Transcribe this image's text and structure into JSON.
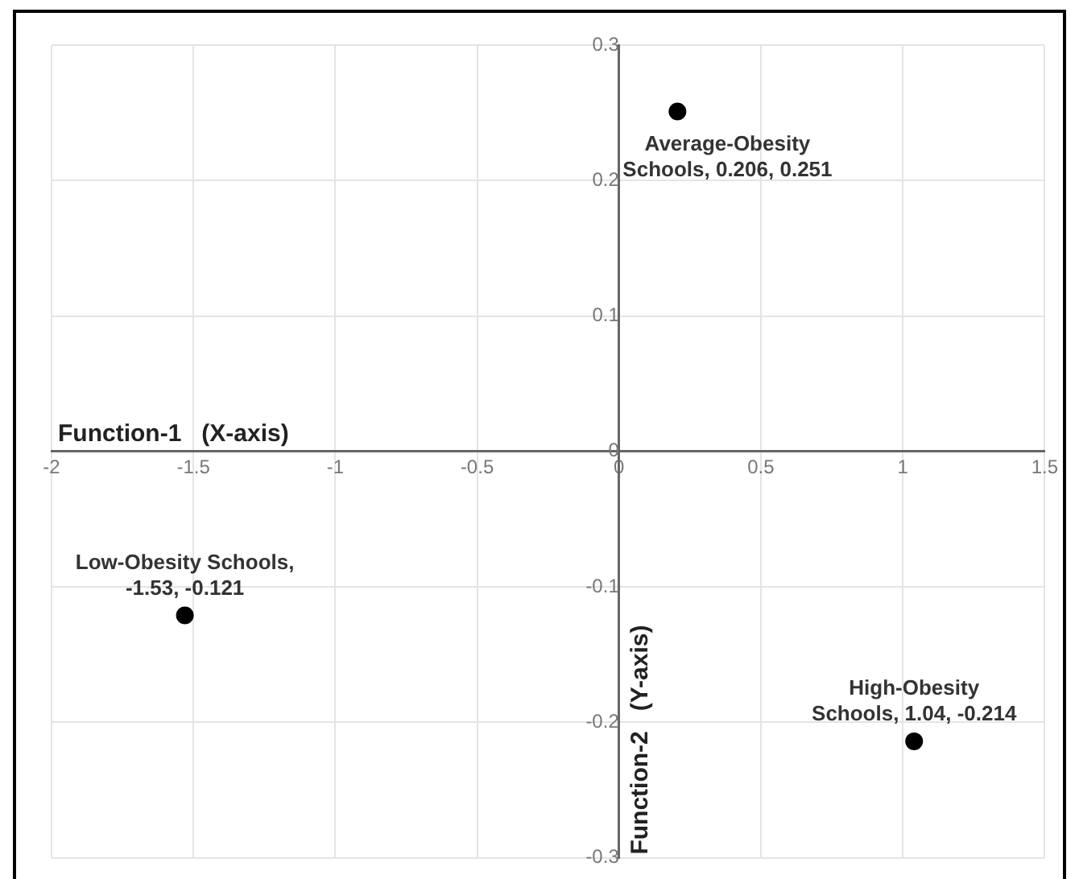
{
  "chart_data": {
    "type": "scatter",
    "xlabel": "Function-1   (X-axis)",
    "ylabel": "Function-2   (Y-axis)",
    "series": [
      {
        "color": "#000000",
        "x": [
          0.206,
          -1.53,
          1.04
        ],
        "values": [
          0.251,
          -0.121,
          -0.214
        ]
      }
    ],
    "annotations": [
      {
        "text": "Average-Obesity\nSchools, 0.206, 0.251",
        "x": 0.206,
        "y": 0.251
      },
      {
        "text": "Low-Obesity Schools,\n-1.53, -0.121",
        "x": -1.53,
        "y": -0.121
      },
      {
        "text": "High-Obesity\nSchools, 1.04, -0.214",
        "x": 1.04,
        "y": -0.214
      }
    ],
    "xlim": [
      -2,
      1.5
    ],
    "xticks": [
      -2,
      -1.5,
      -1,
      -0.5,
      0,
      0.5,
      1,
      1.5
    ],
    "ylim": [
      -0.3,
      0.3
    ],
    "yticks": [
      -0.3,
      -0.2,
      -0.1,
      0,
      0.1,
      0.2,
      0.3
    ],
    "grid": true,
    "marker": "circle",
    "legend": false
  }
}
